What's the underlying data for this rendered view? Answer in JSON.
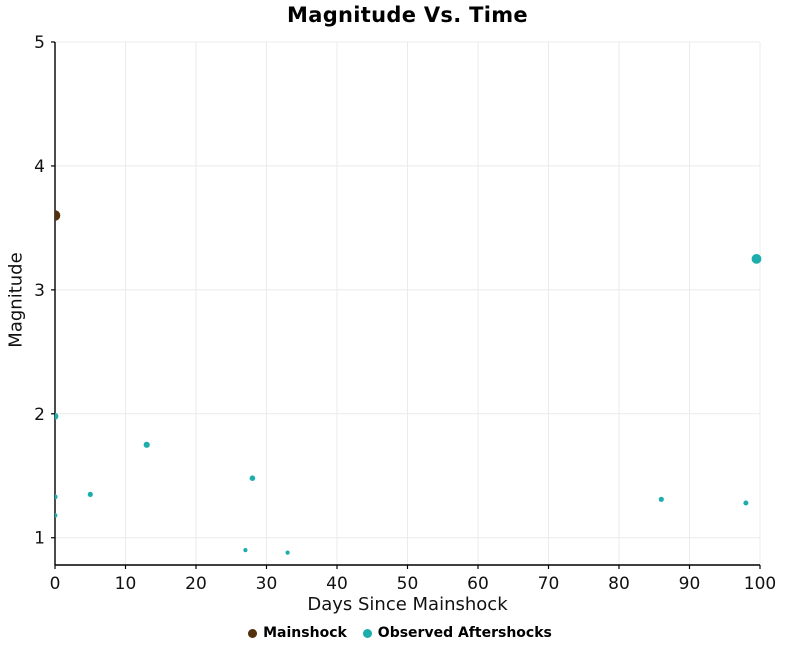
{
  "chart_data": {
    "type": "scatter",
    "title": "Magnitude Vs. Time",
    "xlabel": "Days Since Mainshock",
    "ylabel": "Magnitude",
    "xlim": [
      0,
      100
    ],
    "ylim": [
      0.78,
      5
    ],
    "x_ticks": [
      0,
      10,
      20,
      30,
      40,
      50,
      60,
      70,
      80,
      90,
      100
    ],
    "y_ticks": [
      1,
      2,
      3,
      4,
      5
    ],
    "grid": true,
    "grid_color": "#ebebeb",
    "axis_color": "#000000",
    "legend_position": "bottom",
    "marker_note": "marker size scales with magnitude",
    "series": [
      {
        "name": "Mainshock",
        "color": "#54300c",
        "points": [
          {
            "x": 0,
            "y": 3.6
          }
        ]
      },
      {
        "name": "Observed Aftershocks",
        "color": "#1dadad",
        "points": [
          {
            "x": 0,
            "y": 1.98
          },
          {
            "x": 0,
            "y": 1.33
          },
          {
            "x": 0,
            "y": 1.18
          },
          {
            "x": 5,
            "y": 1.35
          },
          {
            "x": 13,
            "y": 1.75
          },
          {
            "x": 27,
            "y": 0.9
          },
          {
            "x": 28,
            "y": 1.48
          },
          {
            "x": 33,
            "y": 0.88
          },
          {
            "x": 86,
            "y": 1.31
          },
          {
            "x": 98,
            "y": 1.28
          },
          {
            "x": 99.5,
            "y": 3.25
          }
        ]
      }
    ]
  }
}
